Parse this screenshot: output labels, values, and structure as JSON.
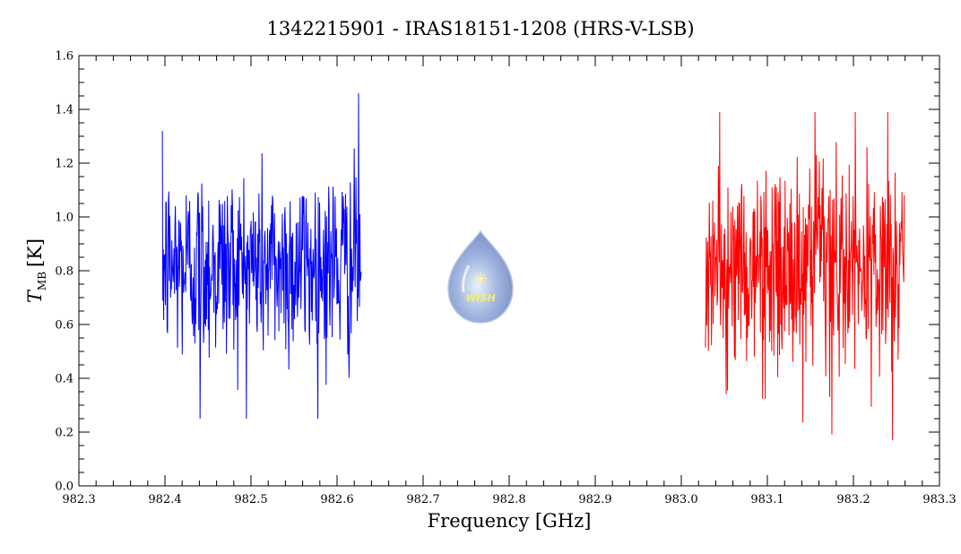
{
  "chart_data": {
    "type": "line",
    "title": "1342215901 - IRAS18151-1208 (HRS-V-LSB)",
    "xlabel": "Frequency [GHz]",
    "ylabel_main": "T",
    "ylabel_sub": "MB",
    "ylabel_unit": "[K]",
    "xlim": [
      982.3,
      983.3
    ],
    "ylim": [
      0.0,
      1.6
    ],
    "x_ticks": [
      "982.3",
      "982.4",
      "982.5",
      "982.6",
      "982.7",
      "982.8",
      "982.9",
      "983.0",
      "983.1",
      "983.2",
      "983.3"
    ],
    "y_ticks": [
      "0.0",
      "0.2",
      "0.4",
      "0.6",
      "0.8",
      "1.0",
      "1.2",
      "1.4",
      "1.6"
    ],
    "grid": false,
    "logo_text": "WISH",
    "series": [
      {
        "color": "#0000ff",
        "x_start": 982.397,
        "x_end": 982.628,
        "mean": 0.82,
        "sigma": 0.18,
        "n_points": 460,
        "max": 1.46,
        "min": 0.25
      },
      {
        "color": "#ff0000",
        "x_start": 983.028,
        "x_end": 983.259,
        "mean": 0.8,
        "sigma": 0.19,
        "n_points": 460,
        "max": 1.39,
        "min": 0.17
      }
    ]
  }
}
